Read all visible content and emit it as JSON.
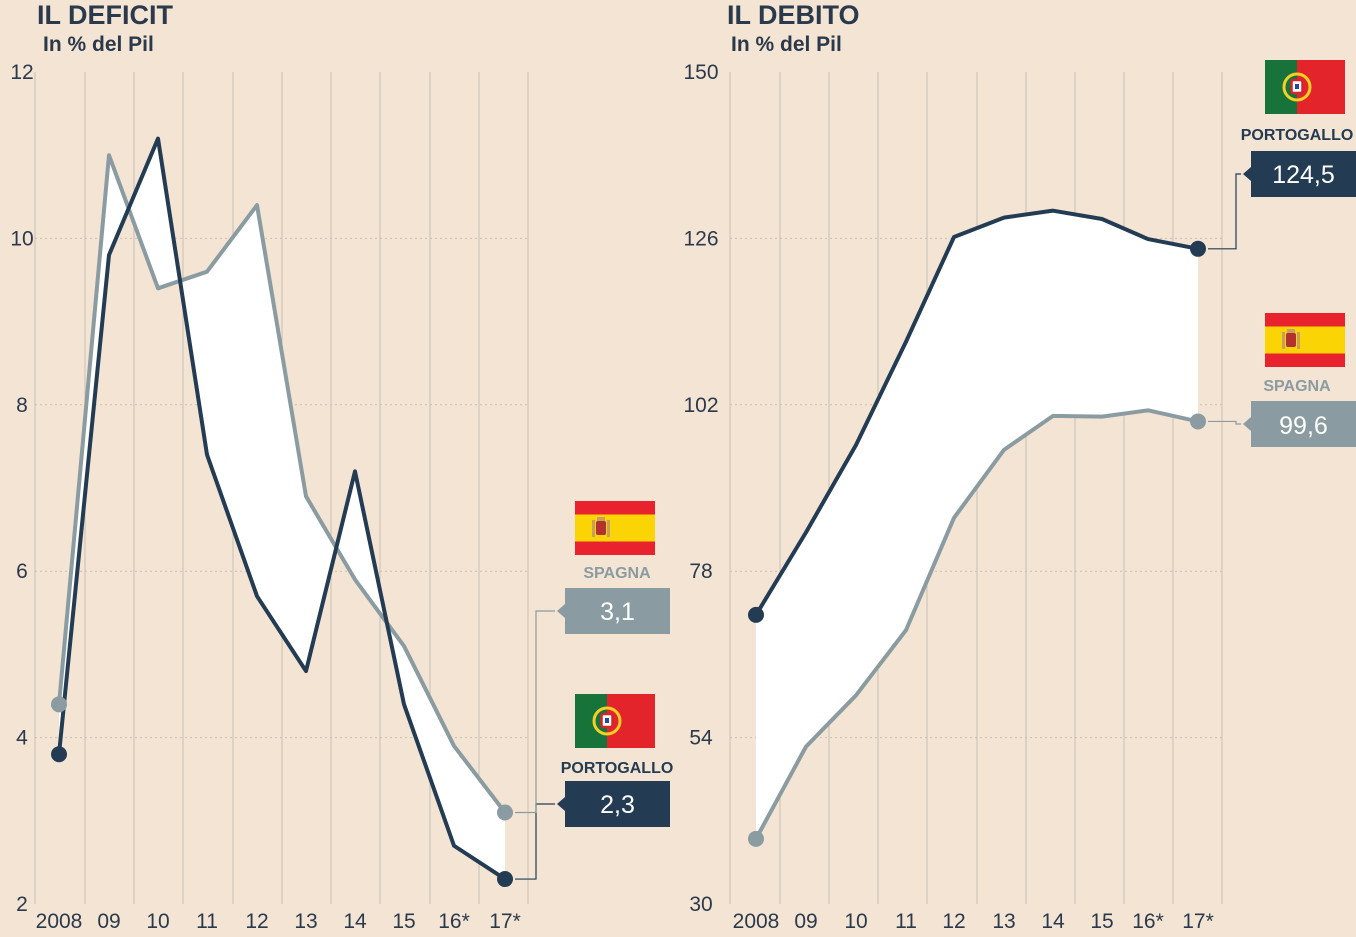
{
  "colors": {
    "background": "#f4e4d3",
    "portogallo": "#243c53",
    "spagna": "#8a9ca1",
    "band": "#ffffff",
    "text": "#2a3a4c"
  },
  "chart_data": [
    {
      "type": "line",
      "title": "IL DEFICIT",
      "subtitle": "In % del Pil",
      "categories": [
        "2008",
        "09",
        "10",
        "11",
        "12",
        "13",
        "14",
        "15",
        "16*",
        "17*"
      ],
      "ylim": [
        2,
        12
      ],
      "yticks": [
        2,
        4,
        6,
        8,
        10,
        12
      ],
      "grid": true,
      "fill_between_series": true,
      "series": [
        {
          "name": "PORTOGALLO",
          "color": "#243c53",
          "label": "2,3",
          "flag": "portugal-flag-icon",
          "values": [
            3.8,
            9.8,
            11.2,
            7.4,
            5.7,
            4.8,
            7.2,
            4.4,
            2.7,
            2.3
          ]
        },
        {
          "name": "SPAGNA",
          "color": "#8a9ca1",
          "label": "3,1",
          "flag": "spain-flag-icon",
          "values": [
            4.4,
            11.0,
            9.4,
            9.6,
            10.4,
            6.9,
            5.9,
            5.1,
            3.9,
            3.1
          ]
        }
      ]
    },
    {
      "type": "line",
      "title": "IL DEBITO",
      "subtitle": "In % del Pil",
      "categories": [
        "2008",
        "09",
        "10",
        "11",
        "12",
        "13",
        "14",
        "15",
        "16*",
        "17*"
      ],
      "ylim": [
        30,
        150
      ],
      "yticks": [
        30,
        54,
        78,
        102,
        126,
        150
      ],
      "grid": true,
      "fill_between_series": true,
      "series": [
        {
          "name": "PORTOGALLO",
          "color": "#243c53",
          "label": "124,5",
          "flag": "portugal-flag-icon",
          "values": [
            71.7,
            83.6,
            96.2,
            111.1,
            126.2,
            129.0,
            130.0,
            128.8,
            125.9,
            124.5
          ]
        },
        {
          "name": "SPAGNA",
          "color": "#8a9ca1",
          "label": "99,6",
          "flag": "spain-flag-icon",
          "values": [
            39.4,
            52.7,
            60.1,
            69.5,
            85.7,
            95.5,
            100.4,
            100.3,
            101.2,
            99.6
          ]
        }
      ]
    }
  ]
}
